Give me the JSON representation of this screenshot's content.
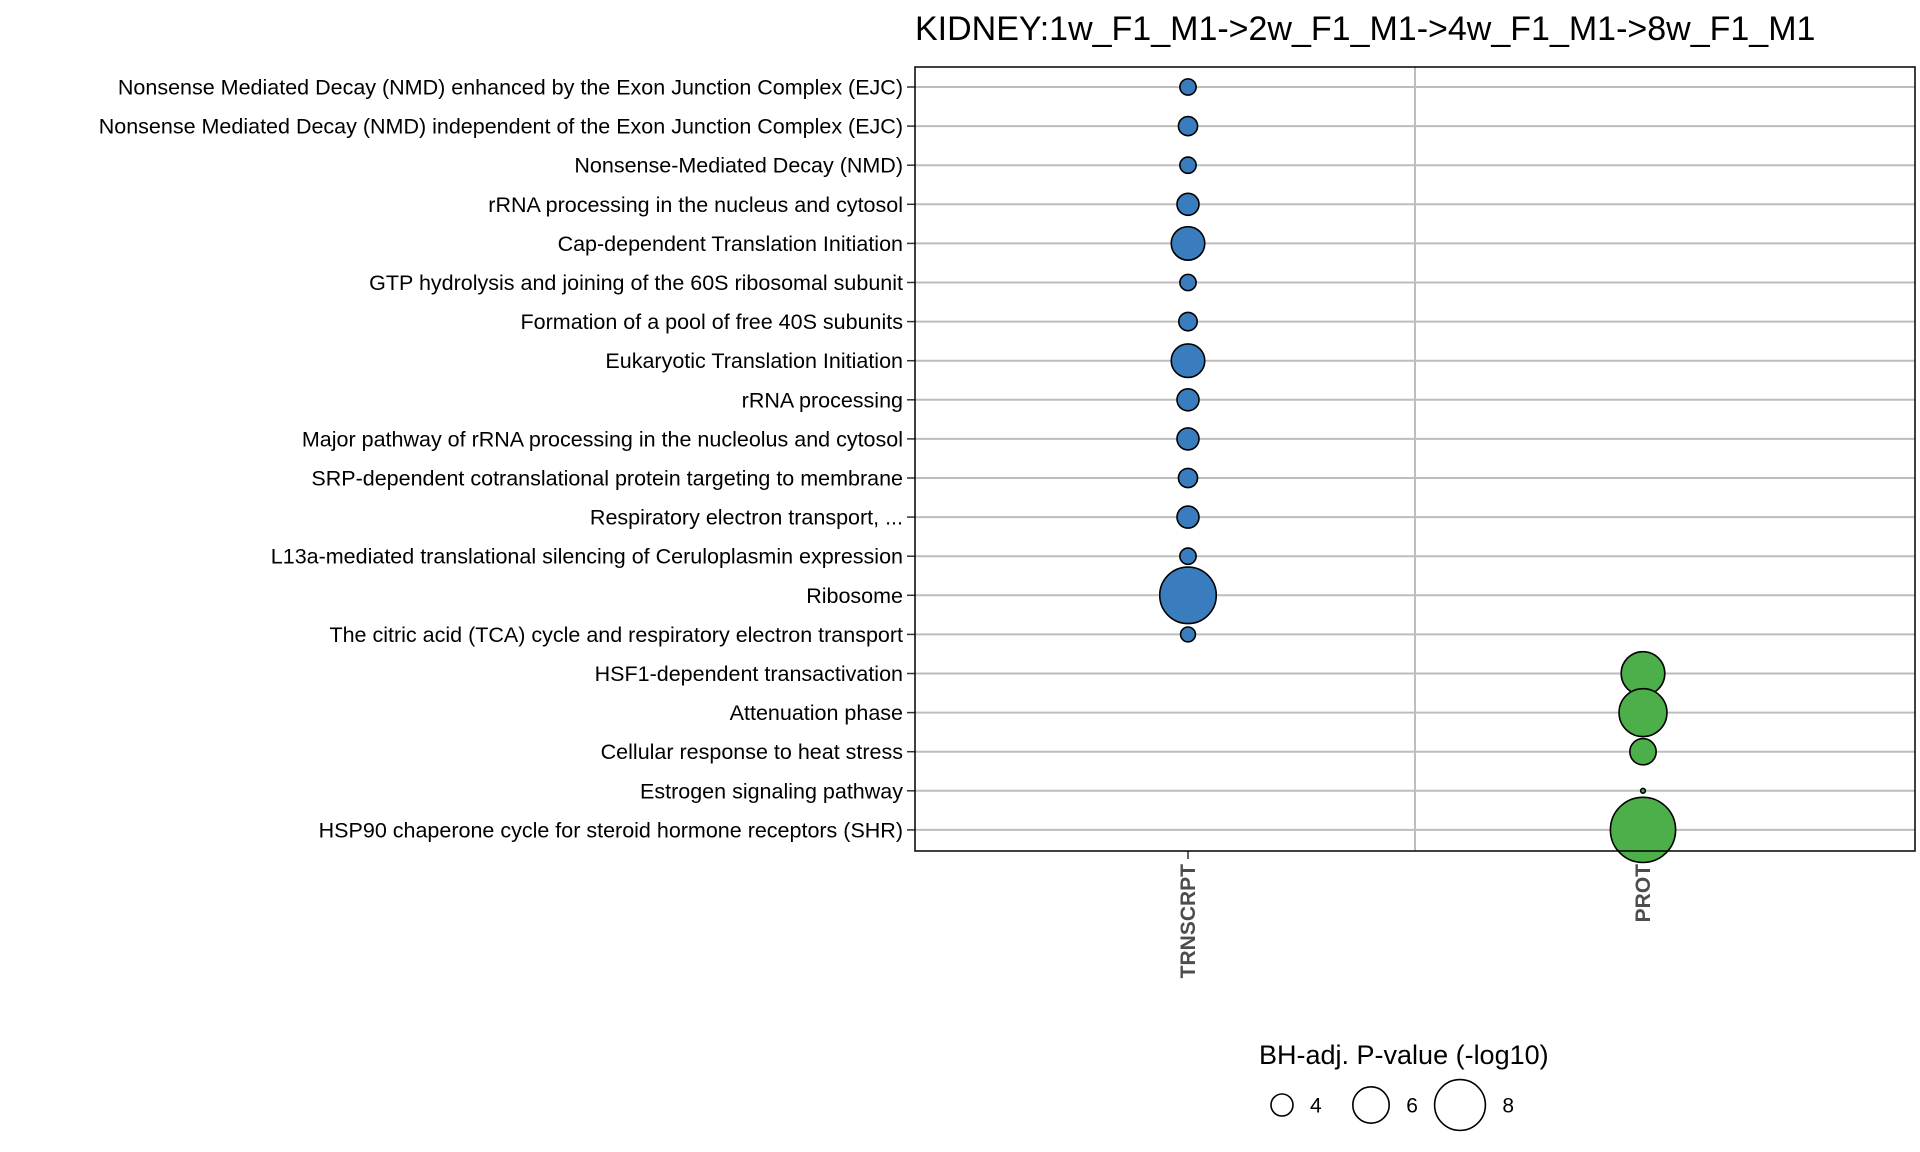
{
  "chart_data": {
    "type": "scatter",
    "title": "KIDNEY:1w_F1_M1->2w_F1_M1->4w_F1_M1->8w_F1_M1",
    "xlabel": "",
    "ylabel": "",
    "x_categories": [
      "TRNSCRPT",
      "PROT"
    ],
    "y_categories": [
      "Nonsense Mediated Decay (NMD) enhanced by the Exon Junction Complex (EJC)",
      "Nonsense Mediated Decay (NMD) independent of the Exon Junction Complex (EJC)",
      "Nonsense-Mediated Decay (NMD)",
      "rRNA processing in the nucleus and cytosol",
      "Cap-dependent Translation Initiation",
      "GTP hydrolysis and joining of the 60S ribosomal subunit",
      "Formation of a pool of free 40S subunits",
      "Eukaryotic Translation Initiation",
      "rRNA processing",
      "Major pathway of rRNA processing in the nucleolus and cytosol",
      "SRP-dependent cotranslational protein targeting to membrane",
      "Respiratory electron transport, ...",
      "L13a-mediated translational silencing of Ceruloplasmin expression",
      "Ribosome",
      "The citric acid (TCA) cycle and respiratory electron transport",
      "HSF1-dependent transactivation",
      "Attenuation phase",
      "Cellular response to heat stress",
      "Estrogen signaling pathway",
      "HSP90 chaperone cycle for steroid hormone receptors (SHR)"
    ],
    "series": [
      {
        "x": "TRNSCRPT",
        "color": "#3a7dbe",
        "points": [
          {
            "y": "Nonsense Mediated Decay (NMD) enhanced by the Exon Junction Complex (EJC)",
            "value": 3.2
          },
          {
            "y": "Nonsense Mediated Decay (NMD) independent of the Exon Junction Complex (EJC)",
            "value": 3.6
          },
          {
            "y": "Nonsense-Mediated Decay (NMD)",
            "value": 3.2
          },
          {
            "y": "rRNA processing in the nucleus and cytosol",
            "value": 4.0
          },
          {
            "y": "Cap-dependent Translation Initiation",
            "value": 5.6
          },
          {
            "y": "GTP hydrolysis and joining of the 60S ribosomal subunit",
            "value": 3.2
          },
          {
            "y": "Formation of a pool of free 40S subunits",
            "value": 3.5
          },
          {
            "y": "Eukaryotic Translation Initiation",
            "value": 5.6
          },
          {
            "y": "rRNA processing",
            "value": 4.0
          },
          {
            "y": "Major pathway of rRNA processing in the nucleolus and cytosol",
            "value": 4.0
          },
          {
            "y": "SRP-dependent cotranslational protein targeting to membrane",
            "value": 3.6
          },
          {
            "y": "Respiratory electron transport, ...",
            "value": 4.0
          },
          {
            "y": "L13a-mediated translational silencing of Ceruloplasmin expression",
            "value": 3.2
          },
          {
            "y": "Ribosome",
            "value": 8.8
          },
          {
            "y": "The citric acid (TCA) cycle and respiratory electron transport",
            "value": 3.0
          }
        ]
      },
      {
        "x": "PROT",
        "color": "#4daf4a",
        "points": [
          {
            "y": "HSF1-dependent transactivation",
            "value": 7.0
          },
          {
            "y": "Attenuation phase",
            "value": 7.6
          },
          {
            "y": "Cellular response to heat stress",
            "value": 4.6
          },
          {
            "y": "Estrogen signaling pathway",
            "value": 1.6
          },
          {
            "y": "HSP90 chaperone cycle for steroid hormone receptors (SHR)",
            "value": 10.0
          }
        ]
      }
    ],
    "size_legend": {
      "title": "BH-adj. P-value (-log10)",
      "breaks": [
        4,
        6,
        8
      ],
      "labels": [
        "4",
        "6",
        "8"
      ],
      "placement": "bottom"
    },
    "grid": true,
    "legend": "bottom"
  }
}
